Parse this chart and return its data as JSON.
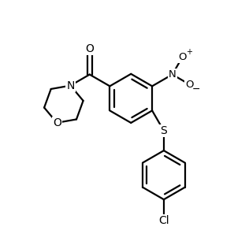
{
  "bg": "#ffffff",
  "lc": "#000000",
  "lw": 1.6,
  "fs": 9.5,
  "xlim": [
    0,
    10
  ],
  "ylim": [
    0,
    10
  ]
}
